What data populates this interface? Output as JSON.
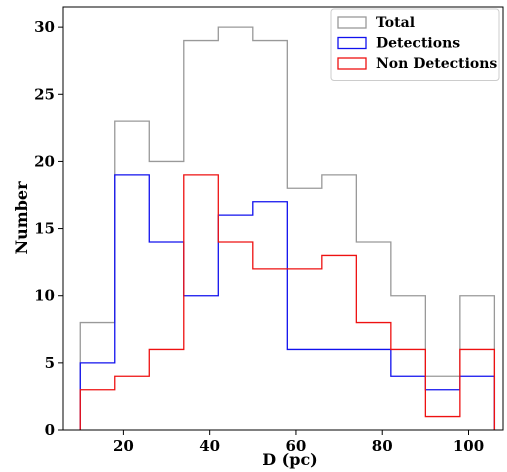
{
  "chart_data": {
    "type": "histogram",
    "xlabel": "D (pc)",
    "ylabel": "Number",
    "xlim": [
      6,
      108
    ],
    "ylim": [
      0,
      31.5
    ],
    "x_ticks": [
      20,
      40,
      60,
      80,
      100
    ],
    "y_ticks": [
      0,
      5,
      10,
      15,
      20,
      25,
      30
    ],
    "bin_edges": [
      10,
      18,
      26,
      34,
      42,
      50,
      58,
      66,
      74,
      82,
      90,
      98,
      106
    ],
    "series": [
      {
        "name": "Total",
        "color": "#999999",
        "values": [
          8,
          23,
          20,
          29,
          30,
          29,
          18,
          19,
          14,
          10,
          4,
          10
        ]
      },
      {
        "name": "Detections",
        "color": "#1111ee",
        "values": [
          5,
          19,
          14,
          10,
          16,
          17,
          6,
          6,
          6,
          4,
          3,
          4
        ]
      },
      {
        "name": "Non Detections",
        "color": "#ee1111",
        "values": [
          3,
          4,
          6,
          19,
          14,
          12,
          12,
          13,
          8,
          6,
          1,
          6
        ]
      }
    ],
    "grid": false,
    "legend": "top-right"
  }
}
